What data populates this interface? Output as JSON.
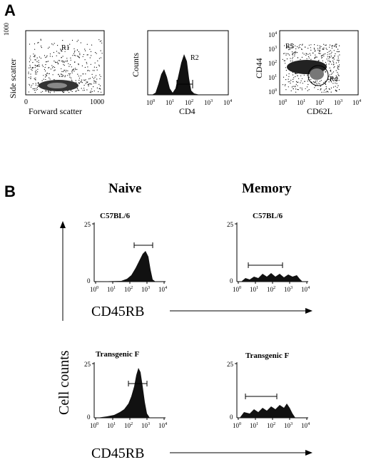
{
  "panel_a": {
    "letter": "A",
    "plots": [
      {
        "id": "scatter-fsc-ssc",
        "xlabel": "Forward scatter",
        "ylabel": "Side scatter",
        "xticks": [
          "0",
          "1000"
        ],
        "yticks": [
          "1000"
        ],
        "gate": "R1"
      },
      {
        "id": "hist-cd4",
        "xlabel": "CD4",
        "ylabel": "Counts",
        "xticks": [
          "10^0",
          "10^1",
          "10^2",
          "10^3",
          "10^4"
        ],
        "gate": "R2"
      },
      {
        "id": "scatter-cd62l-cd44",
        "xlabel": "CD62L",
        "ylabel": "CD44",
        "xticks": [
          "10^0",
          "10^1",
          "10^2",
          "10^3",
          "10^4"
        ],
        "yticks": [
          "10^4",
          "10^3",
          "10^2",
          "10^1",
          "10^0"
        ],
        "gates": [
          "R5",
          "R4"
        ]
      }
    ]
  },
  "panel_b": {
    "letter": "B",
    "col_naive": "Naive",
    "col_memory": "Memory",
    "y_axis_label": "Cell counts",
    "x_axis_label": "CD45RB",
    "plots": [
      {
        "id": "naive-c57",
        "title": "C57BL/6"
      },
      {
        "id": "memory-c57",
        "title": "C57BL/6"
      },
      {
        "id": "naive-tg",
        "title": "Transgenic F"
      },
      {
        "id": "memory-tg",
        "title": "Transgenic F"
      }
    ],
    "y_ticks": [
      "0",
      "25"
    ],
    "x_ticks": [
      "10^0",
      "10^1",
      "10^2",
      "10^3",
      "10^4"
    ]
  }
}
